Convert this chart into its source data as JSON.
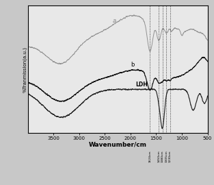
{
  "xlabel": "Wavenumber/cm",
  "ylabel": "%Tranmission(a.u.)",
  "xmin": 500,
  "xmax": 4000,
  "bg_color": "#c8c8c8",
  "plot_bg": "#e8e8e8",
  "dotted_lines": [
    1624,
    1450,
    1380,
    1305,
    1230
  ],
  "dotted_labels": [
    "1624cm",
    "1450cm",
    "1380cm",
    "1305cm",
    "1230cm"
  ],
  "curve_a_color": "#888888",
  "curve_b_color": "#111111",
  "curve_ldh_color": "#222222",
  "label_a": "a",
  "label_b": "b",
  "label_ldh": "LDH",
  "xticks": [
    3500,
    3000,
    2500,
    2000,
    1500,
    1000,
    500
  ]
}
